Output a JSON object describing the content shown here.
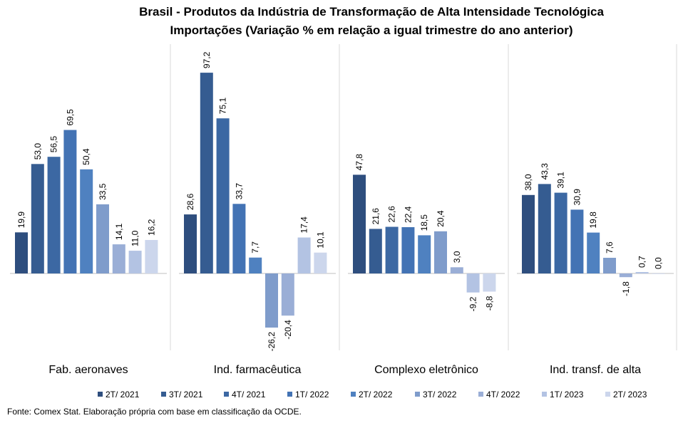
{
  "chart_data": {
    "type": "bar",
    "title_line1": "Brasil - Produtos da Indústria de Transformação de Alta Intensidade Tecnológica",
    "title_line2": "Importações (Variação % em relação a igual trimestre do ano anterior)",
    "categories": [
      "Fab. aeronaves",
      "Ind. farmacêutica",
      "Complexo eletrônico",
      "Ind. transf. de alta"
    ],
    "series": [
      {
        "name": "2T/ 2021",
        "color": "#2E4E7E",
        "values": [
          19.9,
          28.6,
          47.8,
          38.0
        ]
      },
      {
        "name": "3T/ 2021",
        "color": "#355C91",
        "values": [
          53.0,
          97.2,
          21.6,
          43.3
        ]
      },
      {
        "name": "4T/ 2021",
        "color": "#3C68A3",
        "values": [
          56.5,
          75.1,
          22.6,
          39.1
        ]
      },
      {
        "name": "1T/ 2022",
        "color": "#4373B4",
        "values": [
          69.5,
          33.7,
          22.4,
          30.9
        ]
      },
      {
        "name": "2T/ 2022",
        "color": "#4F81C0",
        "values": [
          50.4,
          7.7,
          18.5,
          19.8
        ]
      },
      {
        "name": "3T/ 2022",
        "color": "#7F9CCB",
        "values": [
          33.5,
          -26.2,
          20.4,
          7.6
        ]
      },
      {
        "name": "4T/ 2022",
        "color": "#9AAED6",
        "values": [
          14.1,
          -20.4,
          3.0,
          -1.8
        ]
      },
      {
        "name": "1T/ 2023",
        "color": "#B3C3E3",
        "values": [
          11.0,
          17.4,
          -9.2,
          0.7
        ]
      },
      {
        "name": "2T/ 2023",
        "color": "#CCD6EC",
        "values": [
          16.2,
          10.1,
          -8.8,
          0.0
        ]
      }
    ],
    "data_labels": [
      [
        "19,9",
        "53,0",
        "56,5",
        "69,5",
        "50,4",
        "33,5",
        "14,1",
        "11,0",
        "16,2"
      ],
      [
        "28,6",
        "97,2",
        "75,1",
        "33,7",
        "7,7",
        "-26,2",
        "-20,4",
        "17,4",
        "10,1"
      ],
      [
        "47,8",
        "21,6",
        "22,6",
        "22,4",
        "18,5",
        "20,4",
        "3,0",
        "-9,2",
        "-8,8"
      ],
      [
        "38,0",
        "43,3",
        "39,1",
        "30,9",
        "19,8",
        "7,6",
        "-1,8",
        "0,7",
        "0,0"
      ]
    ],
    "legend_position": "bottom",
    "grid": false,
    "axis_line_color": "#BFBFBF"
  },
  "source_note": "Fonte: Comex Stat. Elaboração própria com base em classificação da OCDE."
}
